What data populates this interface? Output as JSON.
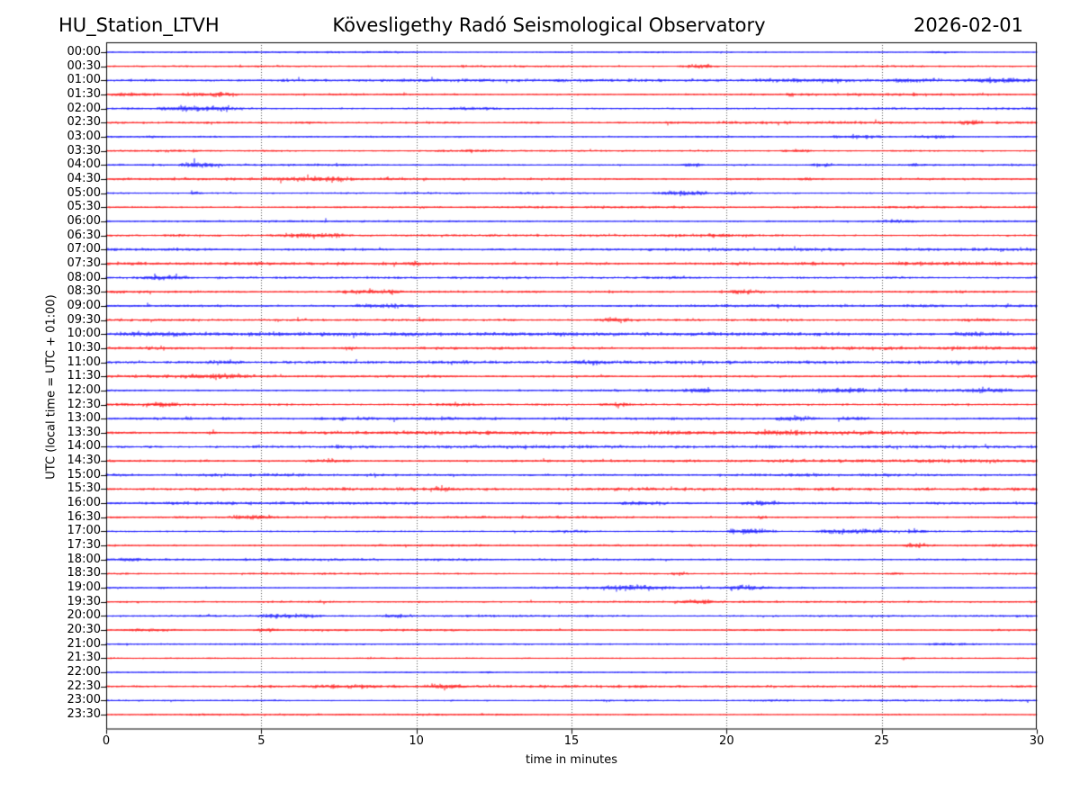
{
  "header": {
    "station": "HU_Station_LTVH",
    "observatory": "Kövesligethy Radó Seismological Observatory",
    "date": "2026-02-01"
  },
  "chart_data": {
    "type": "line",
    "subtype": "helicorder-dayplot",
    "title": "HU_Station_LTVH — Kövesligethy Radó Seismological Observatory — 2026-02-01",
    "xlabel": "time in minutes",
    "ylabel": "UTC (local time = UTC + 01:00)",
    "x_range": [
      0,
      30
    ],
    "x_ticks": [
      0,
      5,
      10,
      15,
      20,
      25,
      30
    ],
    "grid_minutes": [
      5,
      10,
      15,
      20,
      25
    ],
    "grid_on": true,
    "row_duration_minutes": 30,
    "num_rows": 48,
    "colors": {
      "blue": "#0000ff",
      "red": "#ff0000"
    },
    "grid_color": "#555555",
    "axis_color": "#000000",
    "rows": [
      {
        "time": "00:00",
        "color": "blue",
        "noise": 0.55,
        "events": [
          {
            "start": 26.3,
            "end": 27.6,
            "amp": 0.9
          }
        ]
      },
      {
        "time": "00:30",
        "color": "red",
        "noise": 0.55,
        "events": [
          {
            "start": 18.4,
            "end": 19.8,
            "amp": 2.2
          }
        ]
      },
      {
        "time": "01:00",
        "color": "blue",
        "noise": 0.8,
        "events": [
          {
            "start": 20.5,
            "end": 24,
            "amp": 0.9
          },
          {
            "start": 25.2,
            "end": 26.6,
            "amp": 1.8
          },
          {
            "start": 27.6,
            "end": 30,
            "amp": 1.5
          }
        ]
      },
      {
        "time": "01:30",
        "color": "red",
        "noise": 0.8,
        "events": [
          {
            "start": 0,
            "end": 1.8,
            "amp": 1.8
          },
          {
            "start": 2.2,
            "end": 4.4,
            "amp": 2.2
          },
          {
            "start": 21.9,
            "end": 22.2,
            "amp": 2.0
          }
        ]
      },
      {
        "time": "02:00",
        "color": "blue",
        "noise": 0.7,
        "events": [
          {
            "start": 1.6,
            "end": 4.5,
            "amp": 2.6
          },
          {
            "start": 11,
            "end": 13,
            "amp": 0.8
          }
        ]
      },
      {
        "time": "02:30",
        "color": "red",
        "noise": 0.8,
        "events": [
          {
            "start": 6,
            "end": 7,
            "amp": 0.7
          },
          {
            "start": 27.4,
            "end": 28.3,
            "amp": 2.2
          }
        ]
      },
      {
        "time": "03:00",
        "color": "blue",
        "noise": 0.7,
        "events": [
          {
            "start": 1.3,
            "end": 1.7,
            "amp": 1.2
          },
          {
            "start": 23.3,
            "end": 25.1,
            "amp": 1.6
          },
          {
            "start": 25.9,
            "end": 27.6,
            "amp": 2.0
          }
        ]
      },
      {
        "time": "03:30",
        "color": "red",
        "noise": 0.7,
        "events": [
          {
            "start": 11.4,
            "end": 12.6,
            "amp": 1.0
          },
          {
            "start": 21.7,
            "end": 22.8,
            "amp": 1.8
          }
        ]
      },
      {
        "time": "04:00",
        "color": "blue",
        "noise": 0.7,
        "events": [
          {
            "start": 2.3,
            "end": 3.8,
            "amp": 2.6
          },
          {
            "start": 18.5,
            "end": 19.3,
            "amp": 1.6
          },
          {
            "start": 22.6,
            "end": 23.5,
            "amp": 1.6
          },
          {
            "start": 25.8,
            "end": 26.5,
            "amp": 1.0
          }
        ]
      },
      {
        "time": "04:30",
        "color": "red",
        "noise": 0.7,
        "events": [
          {
            "start": 5.3,
            "end": 8.1,
            "amp": 1.8
          },
          {
            "start": 22.3,
            "end": 22.9,
            "amp": 1.0
          }
        ]
      },
      {
        "time": "05:00",
        "color": "blue",
        "noise": 0.6,
        "events": [
          {
            "start": 2.7,
            "end": 3.1,
            "amp": 1.6
          },
          {
            "start": 17.6,
            "end": 19.6,
            "amp": 2.6
          },
          {
            "start": 19.6,
            "end": 21,
            "amp": 1.4
          }
        ]
      },
      {
        "time": "05:30",
        "color": "red",
        "noise": 0.6,
        "events": []
      },
      {
        "time": "06:00",
        "color": "blue",
        "noise": 0.7,
        "events": [
          {
            "start": 24.8,
            "end": 26.2,
            "amp": 1.2
          }
        ]
      },
      {
        "time": "06:30",
        "color": "red",
        "noise": 0.8,
        "events": [
          {
            "start": 5.1,
            "end": 8,
            "amp": 2.0
          },
          {
            "start": 19.4,
            "end": 20.1,
            "amp": 1.6
          }
        ]
      },
      {
        "time": "07:00",
        "color": "blue",
        "noise": 1.05,
        "events": []
      },
      {
        "time": "07:30",
        "color": "red",
        "noise": 1.05,
        "events": [
          {
            "start": 9.7,
            "end": 10.1,
            "amp": 2.4
          },
          {
            "start": 25,
            "end": 30,
            "amp": 0.8
          }
        ]
      },
      {
        "time": "08:00",
        "color": "blue",
        "noise": 1.0,
        "events": [
          {
            "start": 1.1,
            "end": 2.7,
            "amp": 2.2
          }
        ]
      },
      {
        "time": "08:30",
        "color": "red",
        "noise": 1.0,
        "events": [
          {
            "start": 7.6,
            "end": 9.7,
            "amp": 1.8
          },
          {
            "start": 19.9,
            "end": 21.3,
            "amp": 2.0
          }
        ]
      },
      {
        "time": "09:00",
        "color": "blue",
        "noise": 1.0,
        "events": [
          {
            "start": 7.9,
            "end": 10.3,
            "amp": 1.5
          }
        ]
      },
      {
        "time": "09:30",
        "color": "red",
        "noise": 1.0,
        "events": [
          {
            "start": 15.7,
            "end": 17,
            "amp": 2.0
          },
          {
            "start": 27.4,
            "end": 28.6,
            "amp": 1.2
          }
        ]
      },
      {
        "time": "10:00",
        "color": "blue",
        "noise": 1.0,
        "events": [
          {
            "start": 0.4,
            "end": 2.9,
            "amp": 1.9
          },
          {
            "start": 27.3,
            "end": 29.6,
            "amp": 1.5
          }
        ]
      },
      {
        "time": "10:30",
        "color": "red",
        "noise": 1.0,
        "events": [
          {
            "start": 7.7,
            "end": 8.2,
            "amp": 1.4
          }
        ]
      },
      {
        "time": "11:00",
        "color": "blue",
        "noise": 1.0,
        "events": [
          {
            "start": 3.1,
            "end": 4.7,
            "amp": 1.9
          },
          {
            "start": 14.8,
            "end": 16.3,
            "amp": 1.4
          }
        ]
      },
      {
        "time": "11:30",
        "color": "red",
        "noise": 1.0,
        "events": [
          {
            "start": 2.4,
            "end": 4.9,
            "amp": 1.6
          }
        ]
      },
      {
        "time": "12:00",
        "color": "blue",
        "noise": 0.9,
        "events": [
          {
            "start": 18.4,
            "end": 19.7,
            "amp": 1.6
          },
          {
            "start": 22.9,
            "end": 24.7,
            "amp": 1.9
          },
          {
            "start": 27.4,
            "end": 29.2,
            "amp": 1.9
          }
        ]
      },
      {
        "time": "12:30",
        "color": "red",
        "noise": 1.0,
        "events": [
          {
            "start": 1.1,
            "end": 2.5,
            "amp": 2.2
          },
          {
            "start": 10.7,
            "end": 12.1,
            "amp": 1.5
          },
          {
            "start": 15.9,
            "end": 17.1,
            "amp": 1.4
          }
        ]
      },
      {
        "time": "13:00",
        "color": "blue",
        "noise": 0.9,
        "events": [
          {
            "start": 21.4,
            "end": 23.1,
            "amp": 2.4
          },
          {
            "start": 23.5,
            "end": 24.7,
            "amp": 1.9
          }
        ]
      },
      {
        "time": "13:30",
        "color": "red",
        "noise": 1.0,
        "events": [
          {
            "start": 3.2,
            "end": 3.6,
            "amp": 1.4
          },
          {
            "start": 20.9,
            "end": 22.3,
            "amp": 1.4
          }
        ]
      },
      {
        "time": "14:00",
        "color": "blue",
        "noise": 0.9,
        "events": [
          {
            "start": 7.3,
            "end": 7.8,
            "amp": 1.4
          }
        ]
      },
      {
        "time": "14:30",
        "color": "red",
        "noise": 0.9,
        "events": [
          {
            "start": 6.4,
            "end": 8,
            "amp": 1.8
          }
        ]
      },
      {
        "time": "15:00",
        "color": "blue",
        "noise": 1.1,
        "events": [
          {
            "start": 24.9,
            "end": 25.5,
            "amp": 1.2
          }
        ]
      },
      {
        "time": "15:30",
        "color": "red",
        "noise": 0.9,
        "events": [
          {
            "start": 10.4,
            "end": 11.3,
            "amp": 1.4
          }
        ]
      },
      {
        "time": "16:00",
        "color": "blue",
        "noise": 0.9,
        "events": [
          {
            "start": 16.4,
            "end": 18.2,
            "amp": 1.9
          },
          {
            "start": 20.4,
            "end": 21.9,
            "amp": 2.2
          }
        ]
      },
      {
        "time": "16:30",
        "color": "red",
        "noise": 0.9,
        "events": [
          {
            "start": 3.9,
            "end": 5.5,
            "amp": 2.2
          },
          {
            "start": 20.9,
            "end": 21.4,
            "amp": 1.4
          }
        ]
      },
      {
        "time": "17:00",
        "color": "blue",
        "noise": 0.8,
        "events": [
          {
            "start": 14.4,
            "end": 15.6,
            "amp": 1.2
          },
          {
            "start": 19.9,
            "end": 21.7,
            "amp": 2.8
          },
          {
            "start": 22.8,
            "end": 25.5,
            "amp": 2.4
          },
          {
            "start": 25.8,
            "end": 26.4,
            "amp": 1.6
          }
        ]
      },
      {
        "time": "17:30",
        "color": "red",
        "noise": 0.8,
        "events": [
          {
            "start": 20.6,
            "end": 21.1,
            "amp": 1.4
          },
          {
            "start": 25.6,
            "end": 26.6,
            "amp": 1.9
          }
        ]
      },
      {
        "time": "18:00",
        "color": "blue",
        "noise": 0.8,
        "events": [
          {
            "start": 0,
            "end": 1.5,
            "amp": 1.2
          }
        ]
      },
      {
        "time": "18:30",
        "color": "red",
        "noise": 0.7,
        "events": [
          {
            "start": 18.2,
            "end": 18.8,
            "amp": 1.4
          },
          {
            "start": 25.1,
            "end": 25.7,
            "amp": 1.2
          }
        ]
      },
      {
        "time": "19:00",
        "color": "blue",
        "noise": 0.7,
        "events": [
          {
            "start": 15.9,
            "end": 18.2,
            "amp": 2.2
          },
          {
            "start": 19.7,
            "end": 21.5,
            "amp": 2.2
          }
        ]
      },
      {
        "time": "19:30",
        "color": "red",
        "noise": 0.7,
        "events": [
          {
            "start": 18.2,
            "end": 19.7,
            "amp": 1.6
          }
        ]
      },
      {
        "time": "20:00",
        "color": "blue",
        "noise": 0.7,
        "events": [
          {
            "start": 4.8,
            "end": 7,
            "amp": 1.9
          },
          {
            "start": 8.8,
            "end": 9.9,
            "amp": 1.6
          }
        ]
      },
      {
        "time": "20:30",
        "color": "red",
        "noise": 0.7,
        "events": [
          {
            "start": 0.4,
            "end": 2.6,
            "amp": 1.1
          },
          {
            "start": 4.8,
            "end": 5.6,
            "amp": 2.0
          }
        ]
      },
      {
        "time": "21:00",
        "color": "blue",
        "noise": 0.55,
        "events": [
          {
            "start": 26.3,
            "end": 28.1,
            "amp": 1.3
          }
        ]
      },
      {
        "time": "21:30",
        "color": "red",
        "noise": 0.55,
        "events": [
          {
            "start": 25.6,
            "end": 26.1,
            "amp": 1.1
          }
        ]
      },
      {
        "time": "22:00",
        "color": "blue",
        "noise": 0.55,
        "events": [
          {
            "start": 12,
            "end": 12.5,
            "amp": 1.1
          }
        ]
      },
      {
        "time": "22:30",
        "color": "red",
        "noise": 0.7,
        "events": [
          {
            "start": 6.4,
            "end": 9.6,
            "amp": 1.1
          },
          {
            "start": 10.2,
            "end": 11.7,
            "amp": 2.4
          },
          {
            "start": 17,
            "end": 17.5,
            "amp": 1.4
          }
        ]
      },
      {
        "time": "23:00",
        "color": "blue",
        "noise": 0.55,
        "events": []
      },
      {
        "time": "23:30",
        "color": "red",
        "noise": 0.55,
        "events": []
      }
    ]
  }
}
